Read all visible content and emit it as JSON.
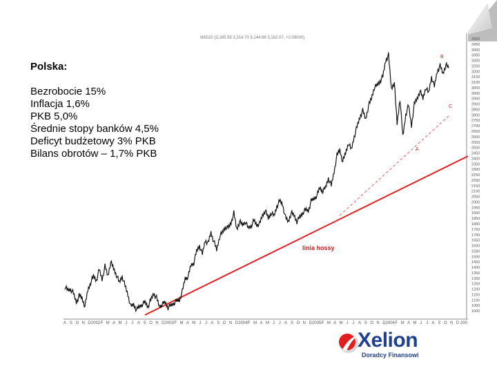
{
  "info": {
    "title": "Polska:",
    "lines": [
      "Bezrobocie 15%",
      "Inflacja 1,6%",
      "PKB 5,0%",
      "Średnie stopy banków 4,5%",
      "Deficyt budżetowy 3% PKB",
      "Bilans obrotów – 1,7% PKB"
    ]
  },
  "logo": {
    "word": "Xelion",
    "sub": "Doradcy Finansowi"
  },
  "chart_data": {
    "type": "line",
    "header": "WIG20 (3,185.59  3,214.70  3,144.66  3,162.07, +2.09000)",
    "ylim": [
      950,
      3500
    ],
    "yticks": [
      1000,
      1050,
      1100,
      1150,
      1200,
      1250,
      1300,
      1350,
      1400,
      1450,
      1500,
      1550,
      1600,
      1650,
      1700,
      1750,
      1800,
      1850,
      1900,
      1950,
      2000,
      2050,
      2100,
      2150,
      2200,
      2250,
      2300,
      2350,
      2400,
      2450,
      2500,
      2550,
      2600,
      2650,
      2700,
      2750,
      2800,
      2850,
      2900,
      2950,
      3000,
      3050,
      3100,
      3150,
      3200,
      3250,
      3300,
      3350,
      3400,
      3450,
      3500
    ],
    "xlabels": [
      "A",
      "S",
      "O",
      "N",
      "D",
      "2002",
      "F",
      "M",
      "A",
      "M",
      "J",
      "J",
      "A",
      "S",
      "O",
      "N",
      "D",
      "2003",
      "F",
      "M",
      "A",
      "M",
      "J",
      "J",
      "A",
      "S",
      "O",
      "N",
      "D",
      "2004",
      "F",
      "M",
      "A",
      "M",
      "J",
      "J",
      "A",
      "S",
      "O",
      "N",
      "D",
      "2005",
      "F",
      "M",
      "A",
      "M",
      "J",
      "J",
      "A",
      "S",
      "O",
      "N",
      "D",
      "2006",
      "F",
      "M",
      "A",
      "M",
      "J",
      "J",
      "A",
      "S",
      "O",
      "N",
      "D",
      "200"
    ],
    "series": [
      {
        "values": [
          1220,
          1190,
          1200,
          1160,
          1080,
          1140,
          1120,
          1040,
          1190,
          1260,
          1320,
          1280,
          1380,
          1290,
          1410,
          1320,
          1450,
          1390,
          1330,
          1260,
          1320,
          1230,
          1150,
          1040,
          1060,
          1010,
          1040,
          1060,
          1080,
          1040,
          1100,
          1160,
          1120,
          1040,
          1060,
          1080,
          1030,
          1050,
          1070,
          1090,
          1100,
          1180,
          1300,
          1310,
          1420,
          1440,
          1550,
          1600,
          1520,
          1650,
          1620,
          1720,
          1640,
          1560,
          1680,
          1720,
          1770,
          1760,
          1810,
          1900,
          1750,
          1820,
          1790,
          1820,
          1760,
          1780,
          1830,
          1790,
          1800,
          1880,
          1920,
          1850,
          1900,
          1870,
          1960,
          2010,
          1980,
          1860,
          1820,
          1900,
          1880,
          1820,
          1860,
          1900,
          1930,
          1920,
          2010,
          2030,
          2060,
          2130,
          2100,
          2130,
          2220,
          2150,
          2280,
          2430,
          2480,
          2370,
          2450,
          2540,
          2480,
          2600,
          2690,
          2780,
          2840,
          2760,
          2880,
          2950,
          3050,
          3070,
          3110,
          3150,
          3300,
          3350,
          3040,
          3100,
          2720,
          2950,
          2600,
          2800,
          2890,
          2700,
          2900,
          2950,
          3020,
          2950,
          3050,
          3000,
          3150,
          3060,
          3200,
          3250,
          3180,
          3260,
          3230
        ]
      }
    ],
    "annotations": [
      "linia hossy",
      "A",
      "B",
      "C"
    ]
  }
}
